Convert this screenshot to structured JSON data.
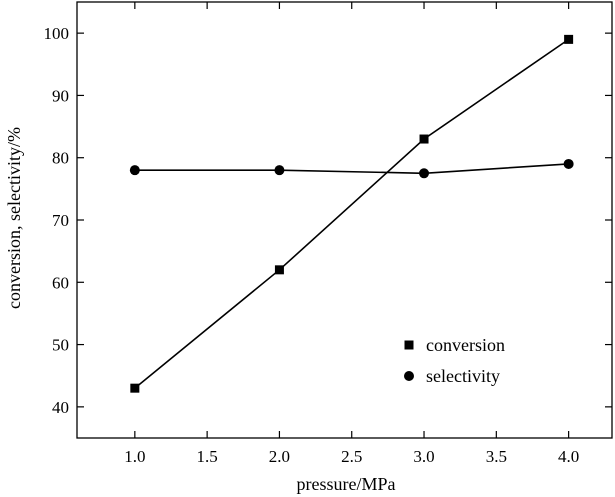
{
  "chart_data": {
    "type": "line",
    "xlabel": "pressure/MPa",
    "ylabel": "conversion, selectivity/%",
    "xlim": [
      0.6,
      4.3
    ],
    "ylim": [
      35,
      105
    ],
    "x_ticks": [
      1.0,
      1.5,
      2.0,
      2.5,
      3.0,
      3.5,
      4.0
    ],
    "x_tick_labels": [
      "1.0",
      "1.5",
      "2.0",
      "2.5",
      "3.0",
      "3.5",
      "4.0"
    ],
    "y_ticks": [
      40,
      50,
      60,
      70,
      80,
      90,
      100
    ],
    "y_tick_labels": [
      "40",
      "50",
      "60",
      "70",
      "80",
      "90",
      "100"
    ],
    "grid": false,
    "legend_position": "lower-right",
    "series": [
      {
        "name": "conversion",
        "marker": "square",
        "color": "#000000",
        "x": [
          1.0,
          2.0,
          3.0,
          4.0
        ],
        "values": [
          43,
          62,
          83,
          99
        ]
      },
      {
        "name": "selectivity",
        "marker": "circle",
        "color": "#000000",
        "x": [
          1.0,
          2.0,
          3.0,
          4.0
        ],
        "values": [
          78,
          78,
          77.5,
          79
        ]
      }
    ]
  }
}
